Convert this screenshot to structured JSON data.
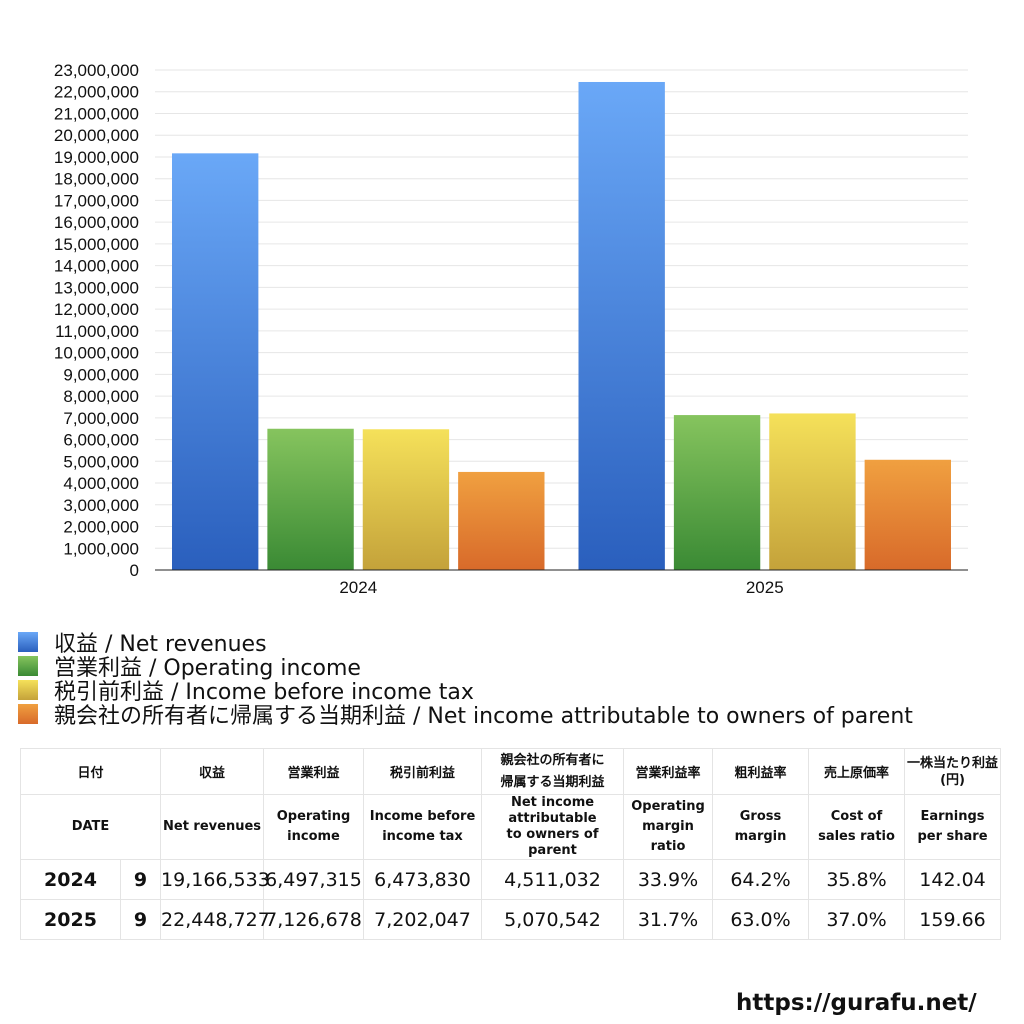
{
  "chart_data": {
    "type": "bar",
    "categories": [
      "2024",
      "2025"
    ],
    "series": [
      {
        "name": "収益 / Net revenues",
        "values": [
          19166533,
          22448727
        ],
        "color_top": "#6aa8f7",
        "color_bottom": "#2a5fbd"
      },
      {
        "name": "営業利益 / Operating income",
        "values": [
          6497315,
          7126678
        ],
        "color_top": "#86c45e",
        "color_bottom": "#3a8a34"
      },
      {
        "name": "税引前利益 / Income before income tax",
        "values": [
          6473830,
          7202047
        ],
        "color_top": "#f5e15a",
        "color_bottom": "#c4a23a"
      },
      {
        "name": "親会社の所有者に帰属する当期利益 / Net income attributable to owners of parent",
        "values": [
          4511032,
          5070542
        ],
        "color_top": "#f0a040",
        "color_bottom": "#d86a2a"
      }
    ],
    "ylim": [
      0,
      23000000
    ],
    "ytick_step": 1000000,
    "ytick_labels": [
      "0",
      "1,000,000",
      "2,000,000",
      "3,000,000",
      "4,000,000",
      "5,000,000",
      "6,000,000",
      "7,000,000",
      "8,000,000",
      "9,000,000",
      "10,000,000",
      "11,000,000",
      "12,000,000",
      "13,000,000",
      "14,000,000",
      "15,000,000",
      "16,000,000",
      "17,000,000",
      "18,000,000",
      "19,000,000",
      "20,000,000",
      "21,000,000",
      "22,000,000",
      "23,000,000"
    ],
    "grid": true,
    "legend_position": "bottom",
    "title": "",
    "xlabel": "",
    "ylabel": ""
  },
  "table": {
    "headers_jp": [
      "日付",
      "収益",
      "営業利益",
      "税引前利益",
      "親会社の所有者に\n帰属する当期利益",
      "営業利益率",
      "粗利益率",
      "売上原価率",
      "一株当たり利益\n(円)"
    ],
    "headers_en": [
      "DATE",
      "Net revenues",
      "Operating\nincome",
      "Income before\nincome tax",
      "Net income attributable\nto owners of parent",
      "Operating\nmargin\nratio",
      "Gross\nmargin",
      "Cost of\nsales ratio",
      "Earnings\nper share"
    ],
    "rows": [
      {
        "year": "2024",
        "month": "9",
        "net_revenues": "19,166,533",
        "operating_income": "6,497,315",
        "income_before_tax": "6,473,830",
        "net_income_parent": "4,511,032",
        "operating_margin": "33.9%",
        "gross_margin": "64.2%",
        "cost_of_sales": "35.8%",
        "eps": "142.04"
      },
      {
        "year": "2025",
        "month": "9",
        "net_revenues": "22,448,727",
        "operating_income": "7,126,678",
        "income_before_tax": "7,202,047",
        "net_income_parent": "5,070,542",
        "operating_margin": "31.7%",
        "gross_margin": "63.0%",
        "cost_of_sales": "37.0%",
        "eps": "159.66"
      }
    ]
  },
  "footer": {
    "url": "https://gurafu.net/"
  }
}
